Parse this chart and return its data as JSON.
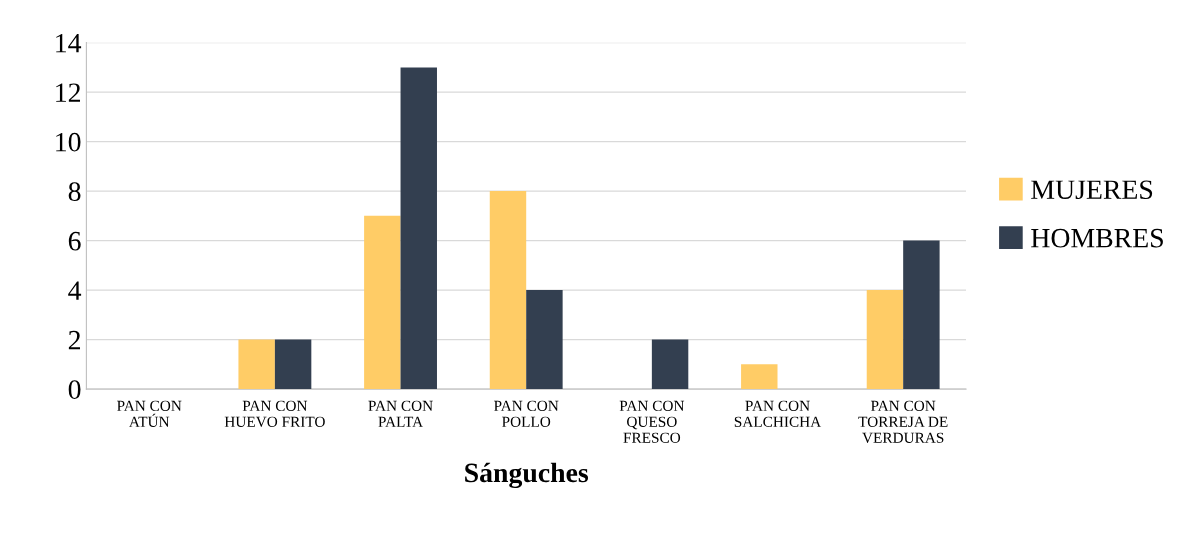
{
  "chart_data": {
    "type": "bar",
    "xlabel": "Sánguches",
    "categories": [
      "PAN CON\nATÚN",
      "PAN CON\nHUEVO FRITO",
      "PAN CON\nPALTA",
      "PAN CON\nPOLLO",
      "PAN CON\nQUESO\nFRESCO",
      "PAN CON\nSALCHICHA",
      "PAN CON\nTORREJA DE\nVERDURAS"
    ],
    "series": [
      {
        "name": "MUJERES",
        "color": "#ffcc66",
        "values": [
          0,
          2,
          7,
          8,
          0,
          1,
          4
        ]
      },
      {
        "name": "HOMBRES",
        "color": "#333f50",
        "values": [
          0,
          2,
          13,
          4,
          2,
          0,
          6
        ]
      }
    ],
    "ylim": [
      0,
      14
    ],
    "yticks": [
      0,
      2,
      4,
      6,
      8,
      10,
      12,
      14
    ],
    "grid": "y",
    "legend": "right"
  }
}
